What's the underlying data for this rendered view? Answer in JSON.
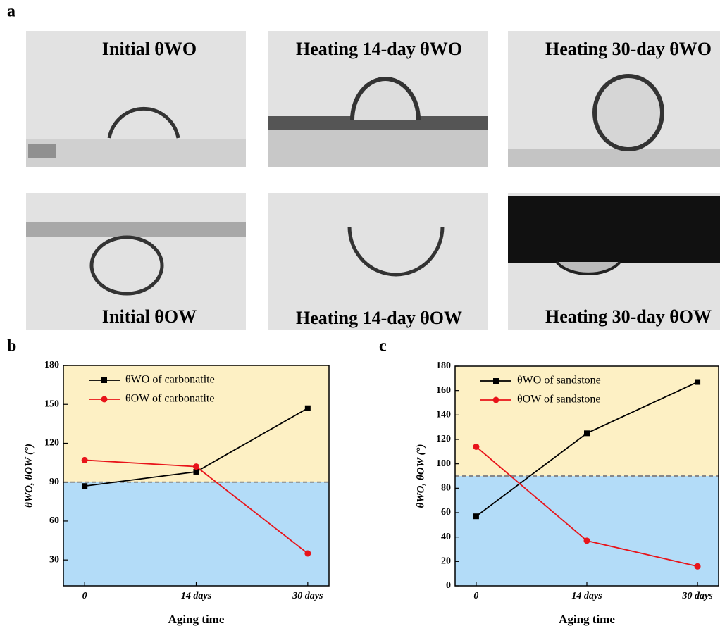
{
  "panels": [
    "a",
    "b",
    "c"
  ],
  "photos": [
    {
      "caption": "Initial θWO"
    },
    {
      "caption": "Heating 14-day θWO"
    },
    {
      "caption": "Heating 30-day θWO"
    },
    {
      "caption": "Initial θOW"
    },
    {
      "caption": "Heating 14-day θOW"
    },
    {
      "caption": "Heating 30-day θOW"
    }
  ],
  "chart_data": [
    {
      "type": "line",
      "xlabel": "Aging time",
      "ylabel": "θWO, θOW (°)",
      "categories": [
        "0",
        "14 days",
        "30 days"
      ],
      "series": [
        {
          "name": "θWO of carbonatite",
          "color": "#000000",
          "marker": "square",
          "values": [
            87,
            98,
            147
          ]
        },
        {
          "name": "θOW of carbonatite",
          "color": "#e8141a",
          "marker": "circle",
          "values": [
            107,
            102,
            35
          ]
        }
      ],
      "ylim": [
        10,
        180
      ],
      "yticks": [
        30,
        60,
        90,
        120,
        150,
        180
      ],
      "threshold": 90,
      "above_color": "#fdf0c4",
      "below_color": "#b3dcf8",
      "legend": "upper left"
    },
    {
      "type": "line",
      "xlabel": "Aging time",
      "ylabel": "θWO, θOW (°)",
      "categories": [
        "0",
        "14 days",
        "30 days"
      ],
      "series": [
        {
          "name": "θWO of sandstone",
          "color": "#000000",
          "marker": "square",
          "values": [
            57,
            125,
            167
          ]
        },
        {
          "name": "θOW of sandstone",
          "color": "#e8141a",
          "marker": "circle",
          "values": [
            114,
            37,
            16
          ]
        }
      ],
      "ylim": [
        0,
        180
      ],
      "yticks": [
        0,
        20,
        40,
        60,
        80,
        100,
        120,
        140,
        160,
        180
      ],
      "threshold": 90,
      "above_color": "#fdf0c4",
      "below_color": "#b3dcf8",
      "legend": "upper left"
    }
  ]
}
